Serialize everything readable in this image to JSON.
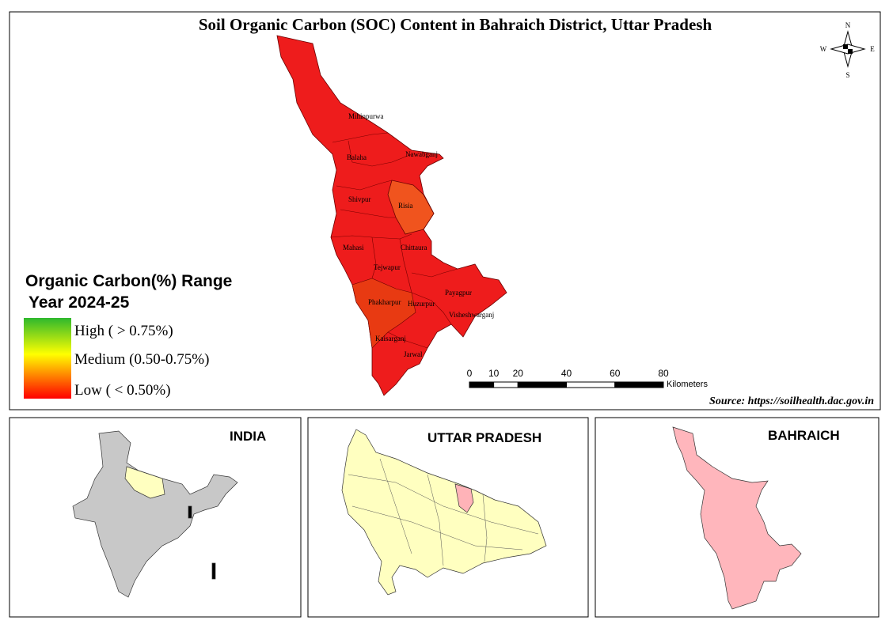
{
  "title": "Soil Organic Carbon (SOC) Content in Bahraich District, Uttar Pradesh",
  "compass": {
    "n": "N",
    "s": "S",
    "e": "E",
    "w": "W"
  },
  "blocks": [
    "Mihinpurwa",
    "Nawabganj",
    "Balaha",
    "Shivpur",
    "Risia",
    "Mahasi",
    "Chittaura",
    "Tejwapur",
    "Payagpur",
    "Phakharpur",
    "Huzurpur",
    "Visheshwarganj",
    "Kaisarganj",
    "Jarwal"
  ],
  "legend": {
    "title": "Organic Carbon(%) Range",
    "subtitle": "Year 2024-25",
    "items": [
      "High ( > 0.75%)",
      "Medium  (0.50-0.75%)",
      "Low ( < 0.50%)"
    ]
  },
  "scale_bar": {
    "ticks": [
      0,
      10,
      20,
      40,
      60,
      80
    ],
    "unit": "Kilometers"
  },
  "source": "Source: https://soilhealth.dac.gov.in",
  "insets": [
    "INDIA",
    "UTTAR PRADESH",
    "BAHRAICH"
  ]
}
